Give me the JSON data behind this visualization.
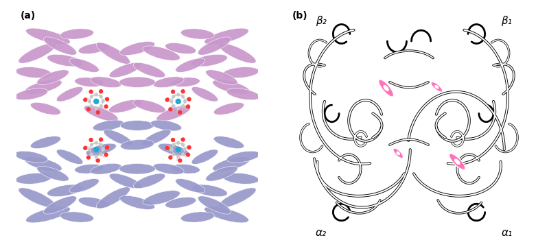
{
  "panel_a_label": "(a)",
  "panel_b_label": "(b)",
  "background_color": "#ffffff",
  "protein_color_alpha": "#c898cc",
  "protein_color_beta": "#9999cc",
  "protein_edge_color": "#ffffff",
  "heme_color": "#ff3333",
  "heme_gray": "#c8c8c8",
  "heme_teal": "#22aacc",
  "schematic_line_color": "#000000",
  "schematic_lw": 2.8,
  "schematic_inner_lw": 1.5,
  "heme_schematic_color": "#ff69b4",
  "label_beta2": "β₂",
  "label_beta1": "β₁",
  "label_alpha2": "α₂",
  "label_alpha1": "α₁",
  "figsize": [
    8.0,
    3.66
  ],
  "dpi": 100
}
